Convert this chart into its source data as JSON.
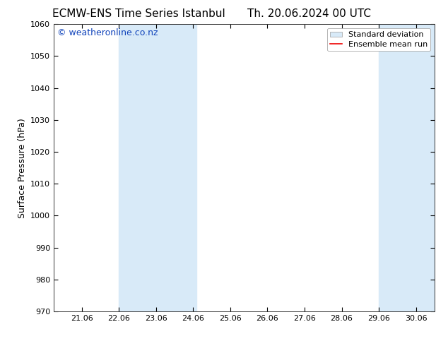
{
  "title_left": "ECMW-ENS Time Series Istanbul",
  "title_right": "Th. 20.06.2024 00 UTC",
  "ylabel": "Surface Pressure (hPa)",
  "ylim": [
    970,
    1060
  ],
  "yticks": [
    970,
    980,
    990,
    1000,
    1010,
    1020,
    1030,
    1040,
    1050,
    1060
  ],
  "xlim_start": 20.25,
  "xlim_end": 30.5,
  "xtick_positions": [
    21.0,
    22.0,
    23.0,
    24.0,
    25.0,
    26.0,
    27.0,
    28.0,
    29.0,
    30.0
  ],
  "xtick_labels": [
    "21.06",
    "22.06",
    "23.06",
    "24.06",
    "25.06",
    "26.06",
    "27.06",
    "28.06",
    "29.06",
    "30.06"
  ],
  "shaded_regions": [
    {
      "x_start": 22.0,
      "x_end": 24.0833
    },
    {
      "x_start": 29.0,
      "x_end": 30.5
    }
  ],
  "shade_color": "#d8eaf8",
  "background_color": "#ffffff",
  "watermark_text": "© weatheronline.co.nz",
  "watermark_color": "#1144bb",
  "legend_std_label": "Standard deviation",
  "legend_mean_label": "Ensemble mean run",
  "legend_std_facecolor": "#d8eaf8",
  "legend_std_edgecolor": "#aaaaaa",
  "legend_mean_color": "#ee0000",
  "title_fontsize": 11,
  "axis_label_fontsize": 9,
  "tick_fontsize": 8,
  "watermark_fontsize": 9,
  "legend_fontsize": 8
}
